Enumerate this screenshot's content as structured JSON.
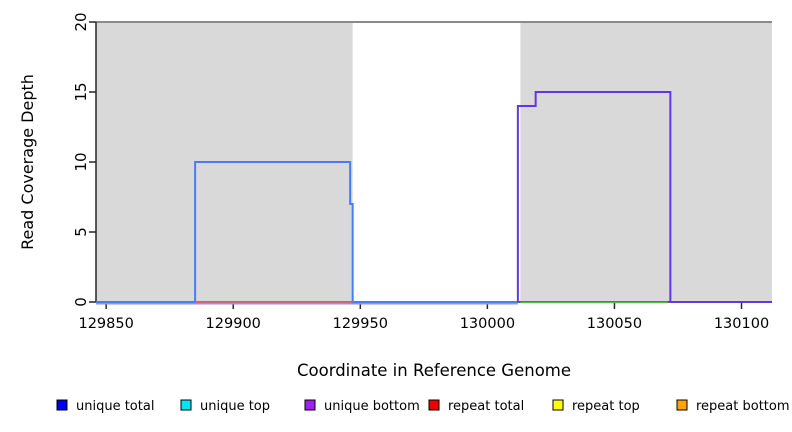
{
  "chart_data": {
    "type": "line",
    "subtype": "step-coverage-plot",
    "title": "",
    "xlabel": "Coordinate in Reference Genome",
    "ylabel": "Read Coverage Depth",
    "xlim": [
      129846,
      130112
    ],
    "ylim": [
      0,
      20
    ],
    "x_ticks": [
      129850,
      129900,
      129950,
      130000,
      130050,
      130100
    ],
    "y_ticks": [
      0,
      5,
      10,
      15,
      20
    ],
    "grid": false,
    "axis_color": "#262626",
    "background_shading": {
      "color": "#d9d9d9",
      "regions": [
        {
          "x0": 129846,
          "x1": 129947
        },
        {
          "x0": 130013,
          "x1": 130112
        }
      ]
    },
    "top_border": {
      "value": 20,
      "color": "#8a8a8a"
    },
    "series": [
      {
        "name": "baseline underlay violet",
        "color": "#9a8cf0",
        "width": 2,
        "dy": 1.5,
        "points": [
          [
            129846,
            0
          ],
          [
            130012,
            0
          ]
        ]
      },
      {
        "name": "unique total",
        "color": "#4b7df2",
        "width": 2,
        "dy": 0,
        "points": [
          [
            129846,
            0
          ],
          [
            129885,
            0
          ],
          [
            129885,
            10
          ],
          [
            129946,
            10
          ],
          [
            129946,
            7
          ],
          [
            129947,
            7
          ],
          [
            129947,
            0
          ],
          [
            130012,
            0
          ]
        ]
      },
      {
        "name": "repeat total",
        "color": "#e15b5b",
        "width": 1.5,
        "dy": 0,
        "points": [
          [
            129885,
            0
          ],
          [
            129947,
            0
          ]
        ]
      },
      {
        "name": "baseline green segment",
        "color": "#58b658",
        "width": 1.5,
        "dy": 0.5,
        "points": [
          [
            130013,
            0
          ],
          [
            130071,
            0
          ]
        ]
      },
      {
        "name": "unique bottom",
        "color": "#6236e6",
        "width": 2,
        "dy": 0,
        "points": [
          [
            130012,
            0
          ],
          [
            130012,
            14
          ],
          [
            130019,
            14
          ],
          [
            130019,
            15
          ],
          [
            130072,
            15
          ],
          [
            130072,
            0
          ],
          [
            130112,
            0
          ]
        ]
      }
    ],
    "legend_position": "bottom",
    "legend": [
      {
        "label": "unique total",
        "color": "#0000ee"
      },
      {
        "label": "unique top",
        "color": "#00e5ee"
      },
      {
        "label": "unique bottom",
        "color": "#a020f0"
      },
      {
        "label": "repeat total",
        "color": "#ee0000"
      },
      {
        "label": "repeat top",
        "color": "#ffff00"
      },
      {
        "label": "repeat bottom",
        "color": "#ffa500"
      }
    ]
  }
}
